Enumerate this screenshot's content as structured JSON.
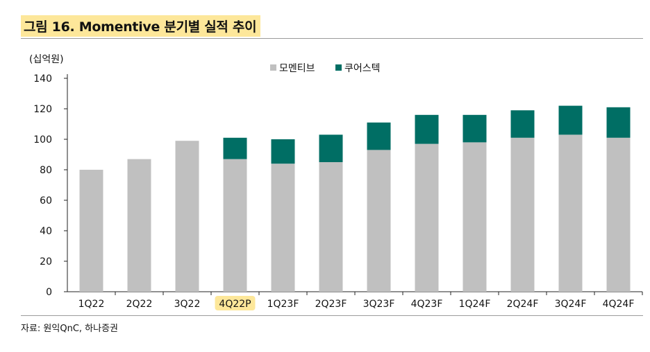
{
  "title": "그림 16. Momentive 분기별 실적 추이",
  "source": "자료: 원익QnC, 하나증권",
  "chart_data": {
    "type": "bar",
    "stacked": true,
    "unit_label": "(십억원)",
    "categories": [
      "1Q22",
      "2Q22",
      "3Q22",
      "4Q22P",
      "1Q23F",
      "2Q23F",
      "3Q23F",
      "4Q23F",
      "1Q24F",
      "2Q24F",
      "3Q24F",
      "4Q24F"
    ],
    "highlighted_category": "4Q22P",
    "highlight_color": "#fde79a",
    "series": [
      {
        "name": "모멘티브",
        "color": "#c0c0c0",
        "values": [
          80,
          87,
          99,
          87,
          84,
          85,
          93,
          97,
          98,
          101,
          103,
          101
        ]
      },
      {
        "name": "쿠어스텍",
        "color": "#006e64",
        "values": [
          0,
          0,
          0,
          14,
          16,
          18,
          18,
          19,
          18,
          18,
          19,
          20
        ]
      }
    ],
    "ylim": [
      0,
      140
    ],
    "yticks": [
      0,
      20,
      40,
      60,
      80,
      100,
      120,
      140
    ],
    "legend_position": "top-center",
    "grid": false
  }
}
